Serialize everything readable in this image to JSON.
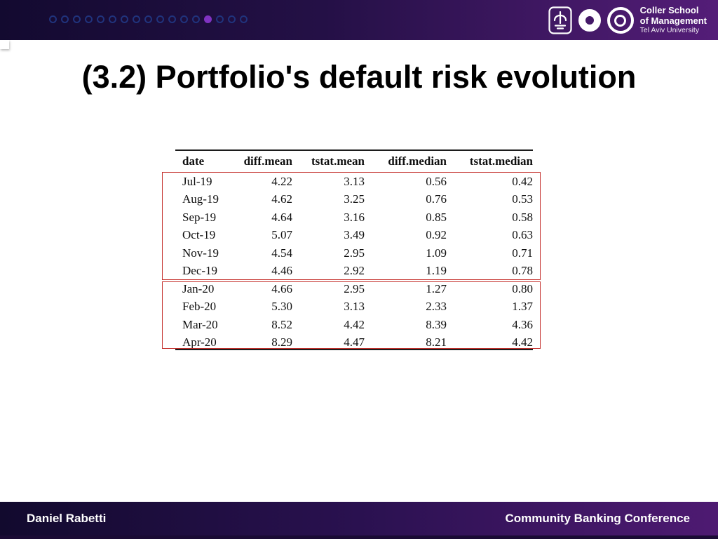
{
  "slide": {
    "title": "(3.2) Portfolio's default risk evolution"
  },
  "header": {
    "progress_dots": {
      "total": 17,
      "active_index": 13
    },
    "branding": {
      "school_line1": "Coller School",
      "school_line2": "of Management",
      "university": "Tel Aviv University"
    }
  },
  "chart_data": {
    "type": "table",
    "columns": [
      "date",
      "diff.mean",
      "tstat.mean",
      "diff.median",
      "tstat.median"
    ],
    "rows": [
      [
        "Jul-19",
        "4.22",
        "3.13",
        "0.56",
        "0.42"
      ],
      [
        "Aug-19",
        "4.62",
        "3.25",
        "0.76",
        "0.53"
      ],
      [
        "Sep-19",
        "4.64",
        "3.16",
        "0.85",
        "0.58"
      ],
      [
        "Oct-19",
        "5.07",
        "3.49",
        "0.92",
        "0.63"
      ],
      [
        "Nov-19",
        "4.54",
        "2.95",
        "1.09",
        "0.71"
      ],
      [
        "Dec-19",
        "4.46",
        "2.92",
        "1.19",
        "0.78"
      ],
      [
        "Jan-20",
        "4.66",
        "2.95",
        "1.27",
        "0.80"
      ],
      [
        "Feb-20",
        "5.30",
        "3.13",
        "2.33",
        "1.37"
      ],
      [
        "Mar-20",
        "8.52",
        "4.42",
        "8.39",
        "4.36"
      ],
      [
        "Apr-20",
        "8.29",
        "4.47",
        "8.21",
        "4.42"
      ]
    ],
    "highlights": [
      {
        "group": "2019 rows Jul-19 to Dec-19",
        "color": "#c42f2b"
      },
      {
        "group": "2020 rows Jan-20 to Apr-20",
        "color": "#c42f2b"
      }
    ]
  },
  "footer": {
    "left": "Daniel Rabetti",
    "right": "Community Banking Conference"
  },
  "colors": {
    "bar_gradient_start": "#130a30",
    "bar_gradient_end": "#541d78",
    "highlight_red": "#c42f2b",
    "dot_outline": "#20337c",
    "dot_active": "#8033c2"
  }
}
